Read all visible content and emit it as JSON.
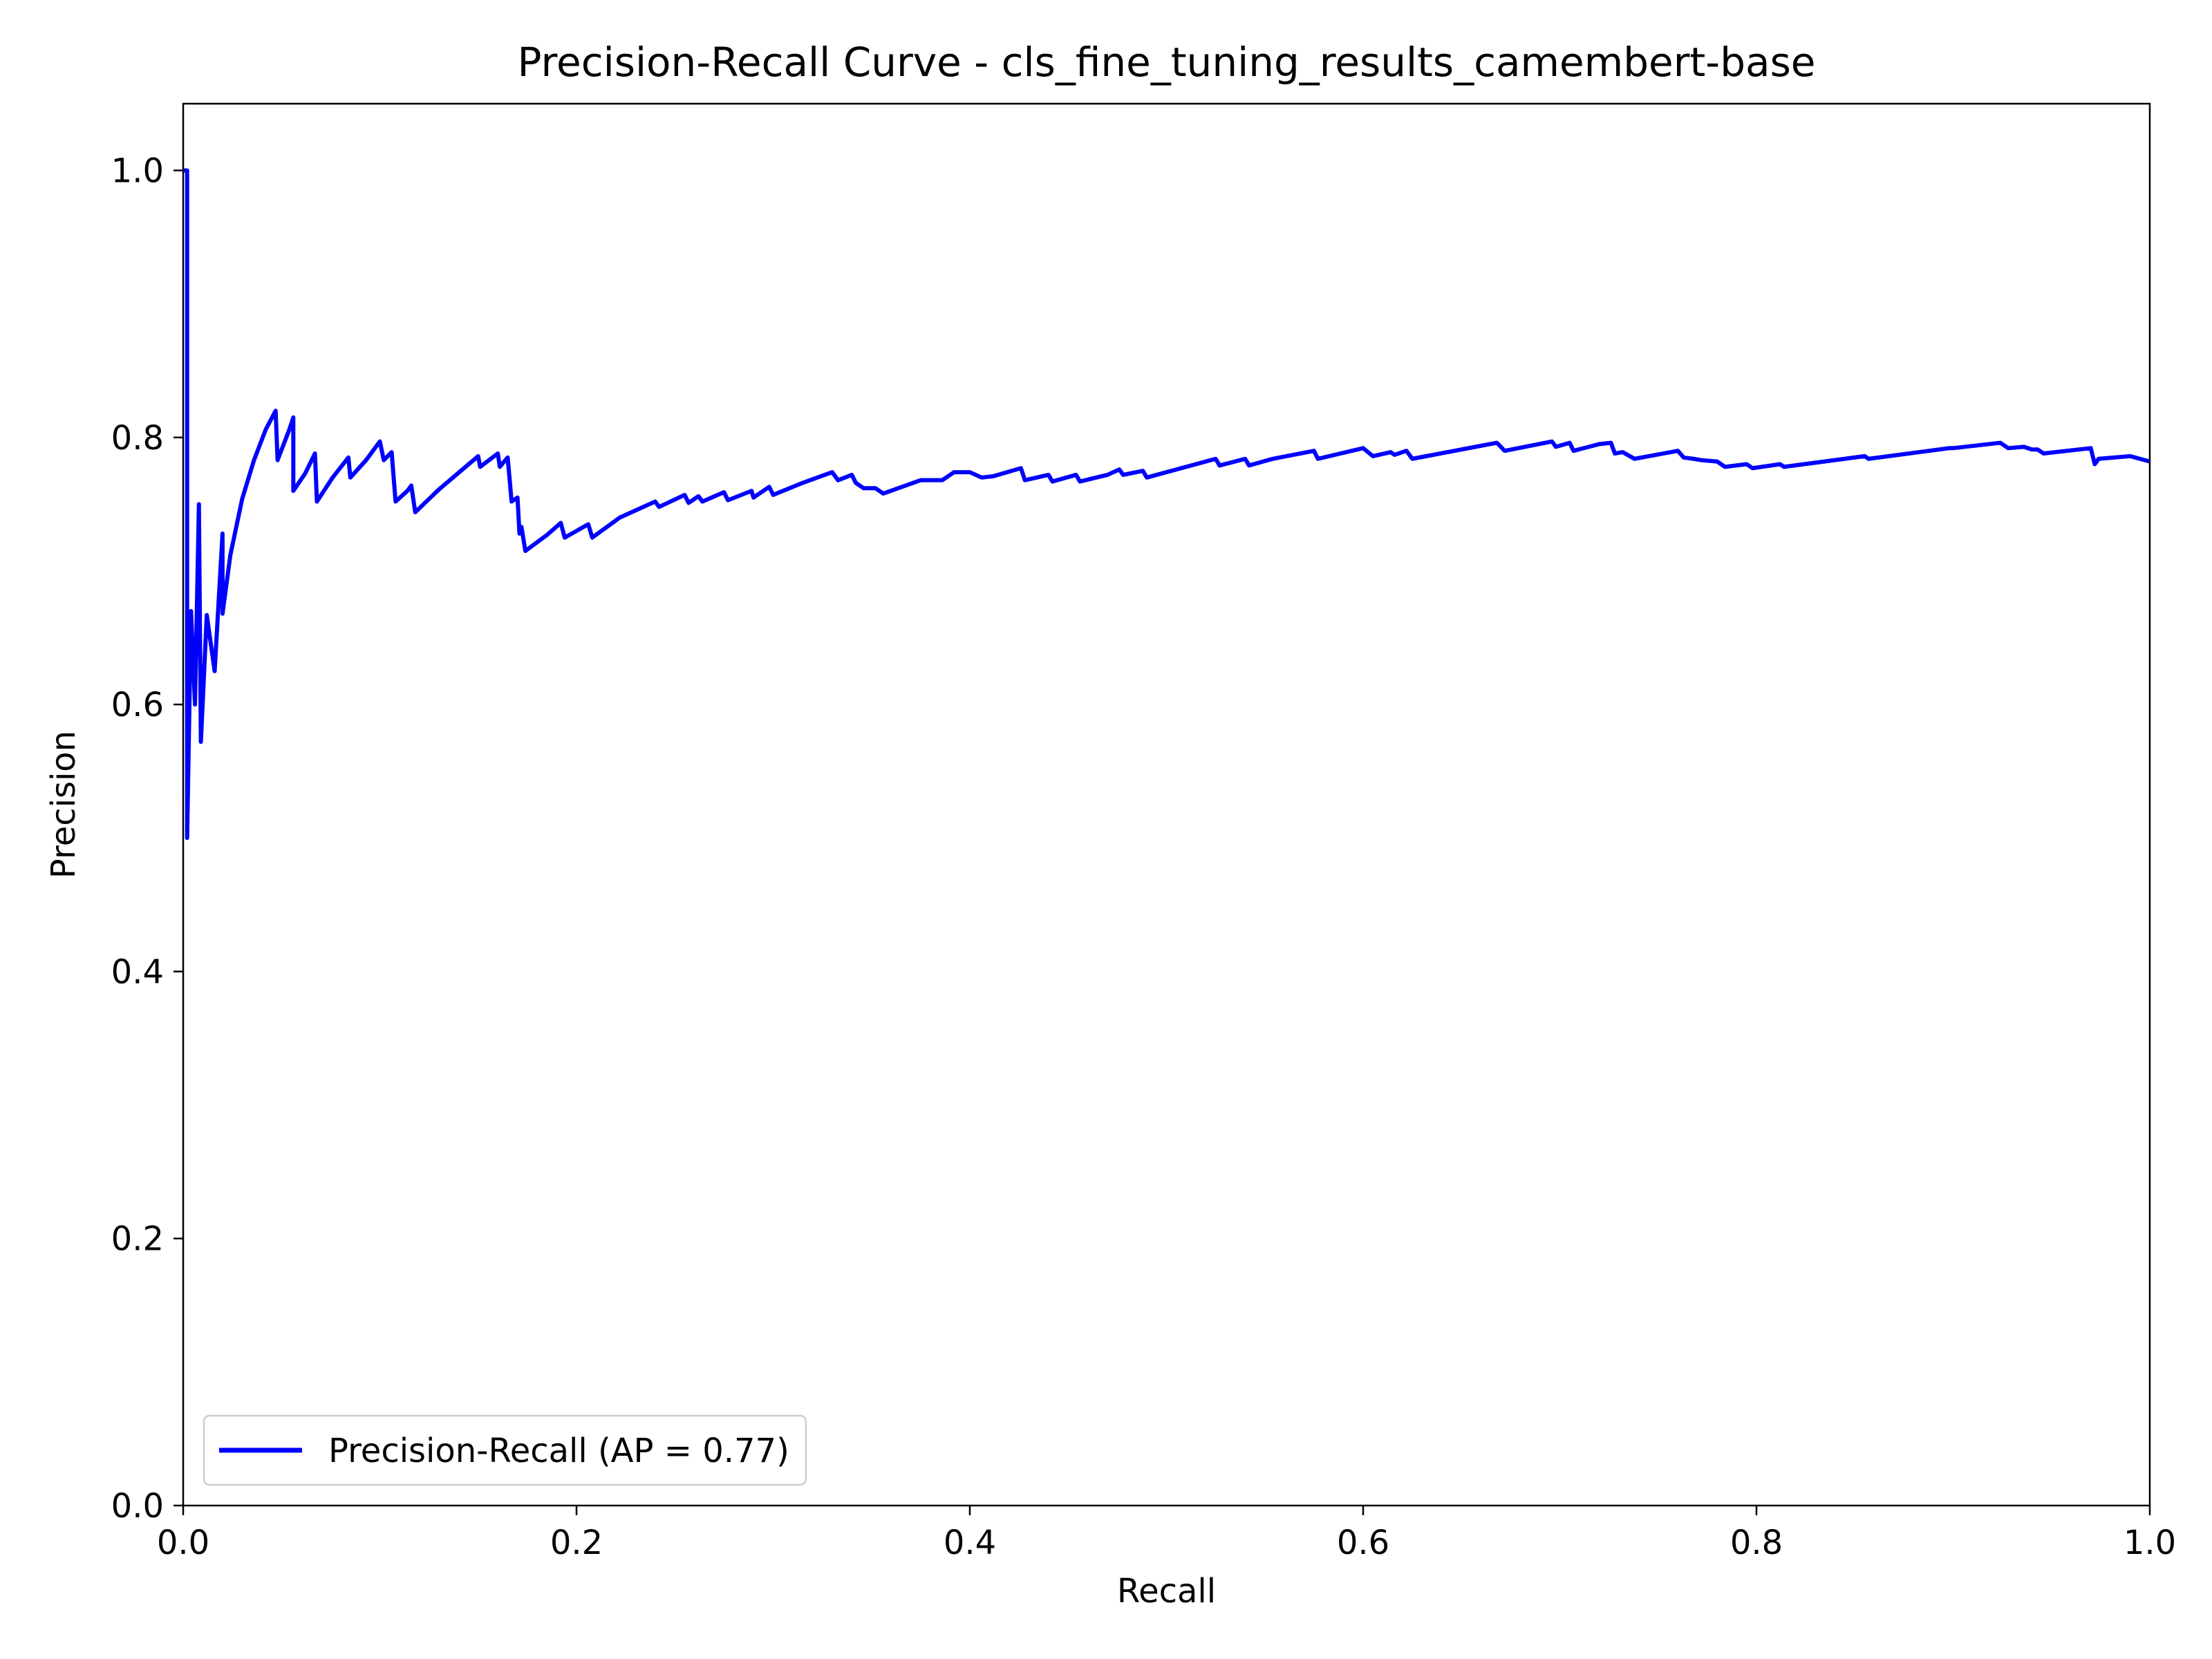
{
  "chart_data": {
    "type": "line",
    "title": "Precision-Recall Curve - cls_fine_tuning_results_camembert-base",
    "xlabel": "Recall",
    "ylabel": "Precision",
    "xlim": [
      0.0,
      1.0
    ],
    "ylim": [
      0.0,
      1.05
    ],
    "xticks": [
      "0.0",
      "0.2",
      "0.4",
      "0.6",
      "0.8",
      "1.0"
    ],
    "yticks": [
      "0.0",
      "0.2",
      "0.4",
      "0.6",
      "0.8",
      "1.0"
    ],
    "grid": false,
    "legend_position": "lower-left",
    "series": [
      {
        "name": "Precision-Recall (AP = 0.77)",
        "color": "#0000ff",
        "points": [
          [
            0.0,
            1.0
          ],
          [
            0.002,
            1.0
          ],
          [
            0.002,
            0.5
          ],
          [
            0.004,
            0.67
          ],
          [
            0.006,
            0.6
          ],
          [
            0.008,
            0.75
          ],
          [
            0.009,
            0.572
          ],
          [
            0.012,
            0.667
          ],
          [
            0.016,
            0.625
          ],
          [
            0.02,
            0.728
          ],
          [
            0.02,
            0.668
          ],
          [
            0.024,
            0.712
          ],
          [
            0.03,
            0.754
          ],
          [
            0.036,
            0.783
          ],
          [
            0.042,
            0.806
          ],
          [
            0.047,
            0.82
          ],
          [
            0.048,
            0.783
          ],
          [
            0.054,
            0.806
          ],
          [
            0.056,
            0.815
          ],
          [
            0.056,
            0.76
          ],
          [
            0.062,
            0.773
          ],
          [
            0.067,
            0.788
          ],
          [
            0.068,
            0.752
          ],
          [
            0.076,
            0.77
          ],
          [
            0.084,
            0.785
          ],
          [
            0.085,
            0.77
          ],
          [
            0.093,
            0.783
          ],
          [
            0.1,
            0.797
          ],
          [
            0.102,
            0.783
          ],
          [
            0.106,
            0.789
          ],
          [
            0.108,
            0.752
          ],
          [
            0.114,
            0.76
          ],
          [
            0.116,
            0.764
          ],
          [
            0.118,
            0.744
          ],
          [
            0.13,
            0.761
          ],
          [
            0.142,
            0.776
          ],
          [
            0.15,
            0.786
          ],
          [
            0.151,
            0.778
          ],
          [
            0.16,
            0.788
          ],
          [
            0.161,
            0.778
          ],
          [
            0.165,
            0.785
          ],
          [
            0.167,
            0.752
          ],
          [
            0.17,
            0.755
          ],
          [
            0.171,
            0.728
          ],
          [
            0.172,
            0.733
          ],
          [
            0.174,
            0.715
          ],
          [
            0.185,
            0.727
          ],
          [
            0.192,
            0.736
          ],
          [
            0.194,
            0.725
          ],
          [
            0.2,
            0.73
          ],
          [
            0.206,
            0.735
          ],
          [
            0.208,
            0.725
          ],
          [
            0.222,
            0.74
          ],
          [
            0.24,
            0.752
          ],
          [
            0.242,
            0.748
          ],
          [
            0.255,
            0.757
          ],
          [
            0.257,
            0.751
          ],
          [
            0.262,
            0.756
          ],
          [
            0.264,
            0.752
          ],
          [
            0.275,
            0.759
          ],
          [
            0.277,
            0.753
          ],
          [
            0.289,
            0.76
          ],
          [
            0.29,
            0.755
          ],
          [
            0.298,
            0.763
          ],
          [
            0.3,
            0.757
          ],
          [
            0.315,
            0.766
          ],
          [
            0.33,
            0.774
          ],
          [
            0.333,
            0.768
          ],
          [
            0.34,
            0.772
          ],
          [
            0.342,
            0.766
          ],
          [
            0.346,
            0.762
          ],
          [
            0.352,
            0.762
          ],
          [
            0.356,
            0.758
          ],
          [
            0.375,
            0.768
          ],
          [
            0.386,
            0.768
          ],
          [
            0.392,
            0.774
          ],
          [
            0.4,
            0.774
          ],
          [
            0.406,
            0.77
          ],
          [
            0.412,
            0.771
          ],
          [
            0.426,
            0.777
          ],
          [
            0.428,
            0.768
          ],
          [
            0.44,
            0.772
          ],
          [
            0.442,
            0.767
          ],
          [
            0.454,
            0.772
          ],
          [
            0.456,
            0.767
          ],
          [
            0.47,
            0.772
          ],
          [
            0.476,
            0.776
          ],
          [
            0.478,
            0.772
          ],
          [
            0.488,
            0.775
          ],
          [
            0.49,
            0.77
          ],
          [
            0.525,
            0.784
          ],
          [
            0.527,
            0.779
          ],
          [
            0.54,
            0.784
          ],
          [
            0.542,
            0.779
          ],
          [
            0.554,
            0.784
          ],
          [
            0.575,
            0.79
          ],
          [
            0.577,
            0.784
          ],
          [
            0.6,
            0.792
          ],
          [
            0.605,
            0.786
          ],
          [
            0.614,
            0.789
          ],
          [
            0.616,
            0.787
          ],
          [
            0.622,
            0.79
          ],
          [
            0.625,
            0.784
          ],
          [
            0.668,
            0.796
          ],
          [
            0.672,
            0.79
          ],
          [
            0.696,
            0.797
          ],
          [
            0.698,
            0.793
          ],
          [
            0.705,
            0.796
          ],
          [
            0.707,
            0.79
          ],
          [
            0.72,
            0.795
          ],
          [
            0.726,
            0.796
          ],
          [
            0.728,
            0.788
          ],
          [
            0.732,
            0.789
          ],
          [
            0.738,
            0.784
          ],
          [
            0.76,
            0.79
          ],
          [
            0.763,
            0.785
          ],
          [
            0.768,
            0.784
          ],
          [
            0.772,
            0.783
          ],
          [
            0.78,
            0.782
          ],
          [
            0.784,
            0.778
          ],
          [
            0.795,
            0.78
          ],
          [
            0.798,
            0.777
          ],
          [
            0.812,
            0.78
          ],
          [
            0.814,
            0.778
          ],
          [
            0.855,
            0.786
          ],
          [
            0.857,
            0.784
          ],
          [
            0.898,
            0.792
          ],
          [
            0.9,
            0.792
          ],
          [
            0.924,
            0.796
          ],
          [
            0.928,
            0.792
          ],
          [
            0.936,
            0.793
          ],
          [
            0.94,
            0.791
          ],
          [
            0.943,
            0.791
          ],
          [
            0.946,
            0.788
          ],
          [
            0.97,
            0.792
          ],
          [
            0.972,
            0.78
          ],
          [
            0.974,
            0.784
          ],
          [
            0.99,
            0.786
          ],
          [
            0.995,
            0.784
          ],
          [
            1.0,
            0.782
          ]
        ]
      }
    ]
  }
}
